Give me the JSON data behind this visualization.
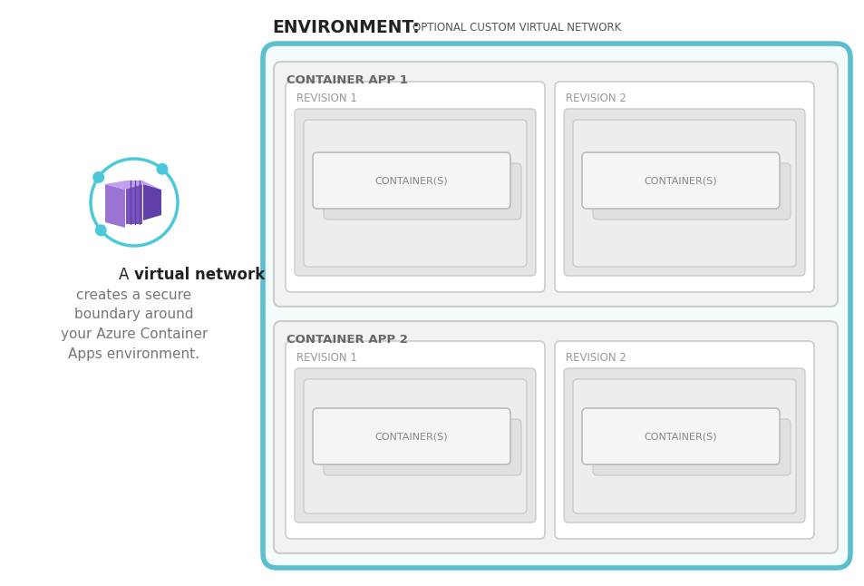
{
  "bg_color": "#ffffff",
  "env_border_color": "#5bbfcd",
  "env_bg_color": "#f4fbfc",
  "app_bg_color": "#f2f2f2",
  "app_border_color": "#cccccc",
  "rev_bg_color": "#ffffff",
  "rev_border_color": "#cccccc",
  "pod_outer_bg": "#e8e8e8",
  "pod_outer_border": "#cccccc",
  "pod_inner_bg": "#ebebeb",
  "pod_inner_border": "#cccccc",
  "cont_bg": "#f8f8f8",
  "cont_border": "#bbbbbb",
  "cont_shadow_bg": "#e0e0e0",
  "cont_shadow_border": "#cccccc",
  "env_title_bold": "ENVIRONMENT:",
  "env_title_normal": "OPTIONAL CUSTOM VIRTUAL NETWORK",
  "container_app1": "CONTAINER APP 1",
  "container_app2": "CONTAINER APP 2",
  "revision1": "REVISION 1",
  "revision2": "REVISION 2",
  "containers_label": "CONTAINER(S)",
  "icon_circle_color": "#4cc9d8",
  "icon_purple_light": "#9b74d4",
  "icon_purple_mid": "#7b52c1",
  "icon_purple_dark": "#5e3d9e",
  "icon_purple_top": "#b090e0",
  "text_dark": "#222222",
  "text_mid": "#555555",
  "text_light": "#888888"
}
